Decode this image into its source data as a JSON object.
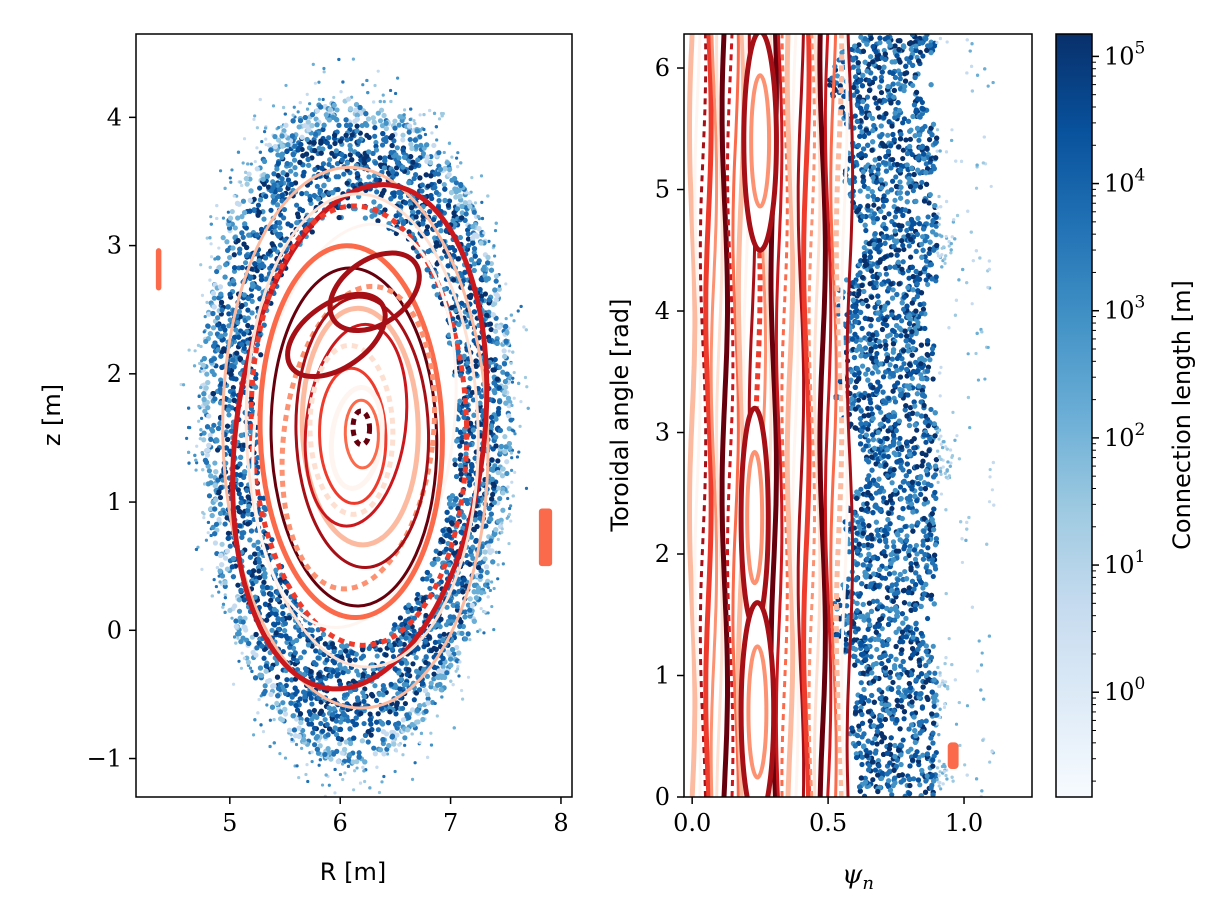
{
  "chart_data": [
    {
      "type": "scatter",
      "panel": "left",
      "xlabel": "R [m]",
      "ylabel": "z [m]",
      "xlim": [
        4.15,
        8.1
      ],
      "ylim": [
        -1.3,
        4.65
      ],
      "xticks": [
        5,
        6,
        7,
        8
      ],
      "xticklabels": [
        "5",
        "6",
        "7",
        "8"
      ],
      "yticks": [
        -1,
        0,
        1,
        2,
        3,
        4
      ],
      "yticklabels": [
        "−1",
        "0",
        "1",
        "2",
        "3",
        "4"
      ],
      "center": [
        6.15,
        1.55
      ],
      "chaotic_region": {
        "r_min": 0.9,
        "r_max": 1.6,
        "z_scale": 1.85,
        "color_scale": "Blues"
      },
      "confined_surfaces": {
        "r_max": 1.2,
        "count": 16,
        "color_scale": "Reds"
      },
      "divertor_stripes": [
        {
          "R": [
            4.33,
            4.38
          ],
          "z": [
            2.65,
            2.98
          ]
        },
        {
          "R": [
            7.8,
            7.92
          ],
          "z": [
            0.5,
            0.95
          ]
        }
      ],
      "grid": false
    },
    {
      "type": "scatter",
      "panel": "right",
      "xlabel": "ψn",
      "ylabel": "Toroidal angle [rad]",
      "xlim": [
        -0.03,
        1.25
      ],
      "ylim": [
        0,
        6.28
      ],
      "xticks": [
        0.0,
        0.5,
        1.0
      ],
      "xticklabels": [
        "0.0",
        "0.5",
        "1.0"
      ],
      "yticks": [
        0,
        1,
        2,
        3,
        4,
        5,
        6
      ],
      "yticklabels": [
        "0",
        "1",
        "2",
        "3",
        "4",
        "5",
        "6"
      ],
      "confined_band": {
        "psi_min": 0.0,
        "psi_max": 0.6,
        "color_scale": "Reds"
      },
      "chaotic_band": {
        "psi_min": 0.6,
        "psi_max": 0.88,
        "color_scale": "Blues"
      },
      "islands": [
        {
          "psi": 0.25,
          "phi": 5.4,
          "half_width": 0.06,
          "half_height": 0.9
        },
        {
          "psi": 0.23,
          "phi": 2.3,
          "half_width": 0.05,
          "half_height": 0.9
        },
        {
          "psi": 0.24,
          "phi": 0.7,
          "half_width": 0.06,
          "half_height": 0.9
        }
      ],
      "divertor_stripe": {
        "psi": [
          0.94,
          0.98
        ],
        "phi": [
          0.23,
          0.45
        ]
      },
      "grid": false
    }
  ],
  "colorbar": {
    "label": "Connection length [m]",
    "scale": "log",
    "range": [
      0.15,
      150000
    ],
    "ticks": [
      1,
      10,
      100,
      1000,
      10000,
      100000
    ],
    "ticklabels": [
      "10^0",
      "10^1",
      "10^2",
      "10^3",
      "10^4",
      "10^5"
    ],
    "colors": [
      "#f7fbff",
      "#deebf7",
      "#c6dbef",
      "#9ecae1",
      "#6baed6",
      "#4292c6",
      "#2171b5",
      "#08519c",
      "#08306b"
    ]
  },
  "palette": {
    "reds": [
      "#fff5f0",
      "#fee0d2",
      "#fcbba1",
      "#fc9272",
      "#fb6a4a",
      "#ef3b2c",
      "#cb181d",
      "#a50f15",
      "#67000d"
    ],
    "blues": [
      "#c6dbef",
      "#9ecae1",
      "#6baed6",
      "#4292c6",
      "#2171b5",
      "#08519c",
      "#08306b"
    ]
  }
}
